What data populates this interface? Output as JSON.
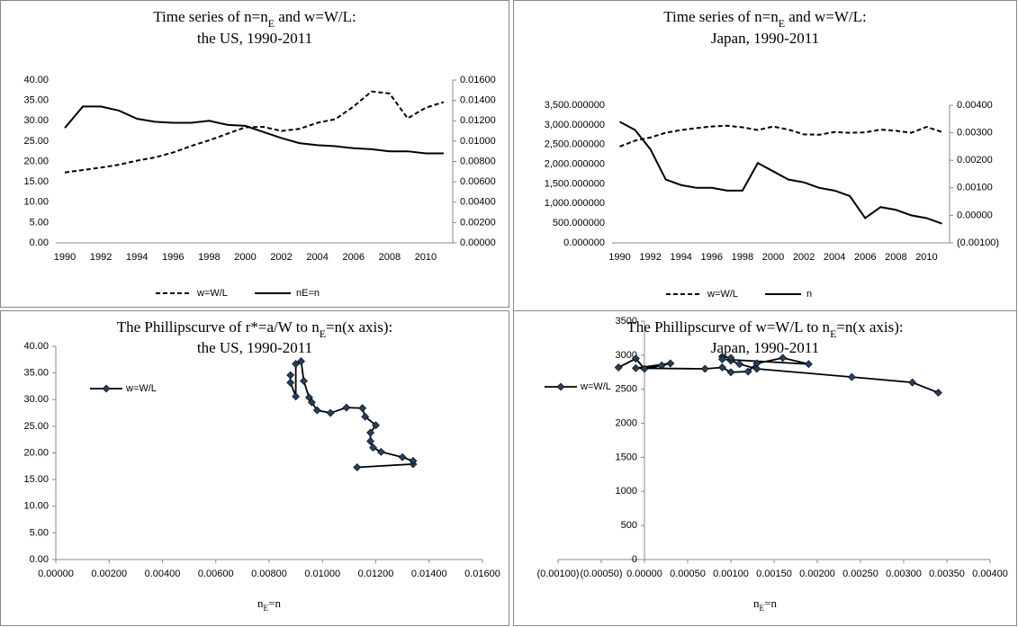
{
  "chart_data": [
    {
      "type": "line",
      "title": [
        [
          "Time series of n=n",
          "E",
          " and w=W/L:"
        ],
        [
          "the US, 1990-2011"
        ]
      ],
      "categories": [
        "1990",
        null,
        "1992",
        null,
        "1994",
        null,
        "1996",
        null,
        "1998",
        null,
        "2000",
        null,
        "2002",
        null,
        "2004",
        null,
        "2006",
        null,
        "2008",
        null,
        "2010",
        null
      ],
      "series": [
        {
          "name": "w=W/L",
          "color": "#000000",
          "dashed": true,
          "values": [
            17.3,
            17.9,
            18.5,
            19.2,
            20.2,
            21.0,
            22.2,
            23.8,
            25.2,
            26.8,
            28.4,
            28.5,
            27.5,
            28.0,
            29.5,
            30.4,
            33.5,
            37.2,
            36.7,
            30.6,
            33.2,
            34.6
          ]
        },
        {
          "name": "nE=n",
          "color": "#000000",
          "dashed": false,
          "axis": "y2",
          "values": [
            0.0113,
            0.0134,
            0.0134,
            0.013,
            0.0122,
            0.0119,
            0.0118,
            0.0118,
            0.012,
            0.0116,
            0.0115,
            0.0109,
            0.0103,
            0.0098,
            0.0096,
            0.0095,
            0.0093,
            0.0092,
            0.009,
            0.009,
            0.0088,
            0.0088
          ]
        }
      ],
      "ylim": [
        0,
        40
      ],
      "yticks": [
        {
          "value": 0,
          "label": "0.00"
        },
        {
          "value": 5,
          "label": "5.00"
        },
        {
          "value": 10,
          "label": "10.00"
        },
        {
          "value": 15,
          "label": "15.00"
        },
        {
          "value": 20,
          "label": "20.00"
        },
        {
          "value": 25,
          "label": "25.00"
        },
        {
          "value": 30,
          "label": "30.00"
        },
        {
          "value": 35,
          "label": "35.00"
        },
        {
          "value": 40,
          "label": "40.00"
        }
      ],
      "y2lim": [
        0,
        0.016
      ],
      "y2ticks": [
        {
          "value": 0,
          "label": "0.00000"
        },
        {
          "value": 0.002,
          "label": "0.00200"
        },
        {
          "value": 0.004,
          "label": "0.00400"
        },
        {
          "value": 0.006,
          "label": "0.00600"
        },
        {
          "value": 0.008,
          "label": "0.00800"
        },
        {
          "value": 0.01,
          "label": "0.01000"
        },
        {
          "value": 0.012,
          "label": "0.01200"
        },
        {
          "value": 0.014,
          "label": "0.01400"
        },
        {
          "value": 0.016,
          "label": "0.01600"
        }
      ],
      "legend": "bottom"
    },
    {
      "type": "line",
      "title": [
        [
          "Time series of n=n",
          "E",
          " and w=W/L:"
        ],
        [
          "Japan, 1990-2011"
        ]
      ],
      "categories": [
        "1990",
        null,
        "1992",
        null,
        "1994",
        null,
        "1996",
        null,
        "1998",
        null,
        "2000",
        null,
        "2002",
        null,
        "2004",
        null,
        "2006",
        null,
        "2008",
        null,
        "2010",
        null
      ],
      "series": [
        {
          "name": "w=W/L",
          "color": "#000000",
          "dashed": true,
          "values": [
            2450,
            2600,
            2680,
            2800,
            2870,
            2920,
            2960,
            2980,
            2940,
            2870,
            2960,
            2880,
            2760,
            2750,
            2820,
            2800,
            2810,
            2880,
            2850,
            2800,
            2950,
            2820
          ]
        },
        {
          "name": "n",
          "color": "#000000",
          "dashed": false,
          "axis": "y2",
          "values": [
            0.0034,
            0.0031,
            0.0024,
            0.0013,
            0.0011,
            0.001,
            0.001,
            0.0009,
            0.0009,
            0.0019,
            0.0016,
            0.0013,
            0.0012,
            0.001,
            0.0009,
            0.0007,
            -0.0001,
            0.0003,
            0.0002,
            0.0,
            -0.0001,
            -0.0003
          ]
        }
      ],
      "ylim": [
        0,
        3500
      ],
      "yticks": [
        {
          "value": 0,
          "label": "0.000000"
        },
        {
          "value": 500,
          "label": "500.000000"
        },
        {
          "value": 1000,
          "label": "1,000.000000"
        },
        {
          "value": 1500,
          "label": "1,500.000000"
        },
        {
          "value": 2000,
          "label": "2,000.000000"
        },
        {
          "value": 2500,
          "label": "2,500.000000"
        },
        {
          "value": 3000,
          "label": "3,000.000000"
        },
        {
          "value": 3500,
          "label": "3,500.000000"
        }
      ],
      "y2lim": [
        -0.001,
        0.004
      ],
      "y2ticks": [
        {
          "value": -0.001,
          "label": "(0.00100)"
        },
        {
          "value": 0,
          "label": "0.00000"
        },
        {
          "value": 0.001,
          "label": "0.00100"
        },
        {
          "value": 0.002,
          "label": "0.00200"
        },
        {
          "value": 0.003,
          "label": "0.00300"
        },
        {
          "value": 0.004,
          "label": "0.00400"
        }
      ],
      "legend": "bottom"
    },
    {
      "type": "scatter",
      "title": [
        [
          "The Phillipscurve of r*=a/W to n",
          "E",
          "=n(x axis):"
        ],
        [
          "the US, 1990-2011"
        ]
      ],
      "x_label": [
        "n",
        "E",
        "=n"
      ],
      "series": [
        {
          "name": "w=W/L",
          "color": "#000000",
          "marker_color": "#243f60",
          "x": [
            0.0113,
            0.0134,
            0.0134,
            0.013,
            0.0122,
            0.0119,
            0.0118,
            0.0118,
            0.012,
            0.0116,
            0.0115,
            0.0109,
            0.0103,
            0.0098,
            0.0096,
            0.0095,
            0.0093,
            0.0092,
            0.009,
            0.009,
            0.0088,
            0.0088
          ],
          "values": [
            17.3,
            17.9,
            18.5,
            19.2,
            20.2,
            21.0,
            22.2,
            23.8,
            25.2,
            26.8,
            28.4,
            28.5,
            27.5,
            28.0,
            29.5,
            30.4,
            33.5,
            37.2,
            36.7,
            30.6,
            33.2,
            34.6
          ]
        }
      ],
      "xlim": [
        0,
        0.016
      ],
      "xticks": [
        {
          "value": 0,
          "label": "0.00000"
        },
        {
          "value": 0.002,
          "label": "0.00200"
        },
        {
          "value": 0.004,
          "label": "0.00400"
        },
        {
          "value": 0.006,
          "label": "0.00600"
        },
        {
          "value": 0.008,
          "label": "0.00800"
        },
        {
          "value": 0.01,
          "label": "0.01000"
        },
        {
          "value": 0.012,
          "label": "0.01200"
        },
        {
          "value": 0.014,
          "label": "0.01400"
        },
        {
          "value": 0.016,
          "label": "0.01600"
        }
      ],
      "ylim": [
        0,
        40
      ],
      "yticks": [
        {
          "value": 0,
          "label": "0.00"
        },
        {
          "value": 5,
          "label": "5.00"
        },
        {
          "value": 10,
          "label": "10.00"
        },
        {
          "value": 15,
          "label": "15.00"
        },
        {
          "value": 20,
          "label": "20.00"
        },
        {
          "value": 25,
          "label": "25.00"
        },
        {
          "value": 30,
          "label": "30.00"
        },
        {
          "value": 35,
          "label": "35.00"
        },
        {
          "value": 40,
          "label": "40.00"
        }
      ],
      "legend": "top-left"
    },
    {
      "type": "scatter",
      "title": [
        [
          "The Phillipscurve of w=W/L to n",
          "E",
          "=n(x axis):"
        ],
        [
          "Japan, 1990-2011"
        ]
      ],
      "x_label": [
        "n",
        "E",
        "=n"
      ],
      "series": [
        {
          "name": "w=W/L",
          "color": "#000000",
          "marker_color": "#243f60",
          "x": [
            0.0034,
            0.0031,
            0.0024,
            0.0013,
            0.0011,
            0.001,
            0.001,
            0.0009,
            0.0009,
            0.0019,
            0.0016,
            0.0013,
            0.0012,
            0.001,
            0.0009,
            0.0007,
            -0.0001,
            0.0003,
            0.0002,
            0.0,
            -0.0001,
            -0.0003
          ],
          "values": [
            2450,
            2600,
            2680,
            2800,
            2870,
            2920,
            2960,
            2980,
            2940,
            2870,
            2960,
            2880,
            2760,
            2750,
            2820,
            2800,
            2810,
            2880,
            2850,
            2800,
            2950,
            2820
          ]
        }
      ],
      "xlim": [
        -0.001,
        0.004
      ],
      "xticks": [
        {
          "value": -0.001,
          "label": "(0.00100)"
        },
        {
          "value": -0.0005,
          "label": "(0.00050)"
        },
        {
          "value": 0,
          "label": "0.00000"
        },
        {
          "value": 0.0005,
          "label": "0.00050"
        },
        {
          "value": 0.001,
          "label": "0.00100"
        },
        {
          "value": 0.0015,
          "label": "0.00150"
        },
        {
          "value": 0.002,
          "label": "0.00200"
        },
        {
          "value": 0.0025,
          "label": "0.00250"
        },
        {
          "value": 0.003,
          "label": "0.00300"
        },
        {
          "value": 0.0035,
          "label": "0.00350"
        },
        {
          "value": 0.004,
          "label": "0.00400"
        }
      ],
      "ylim": [
        0,
        3500
      ],
      "yticks": [
        0,
        500,
        1000,
        1500,
        2000,
        2500,
        3000,
        3500
      ],
      "legend": "top-left"
    }
  ]
}
